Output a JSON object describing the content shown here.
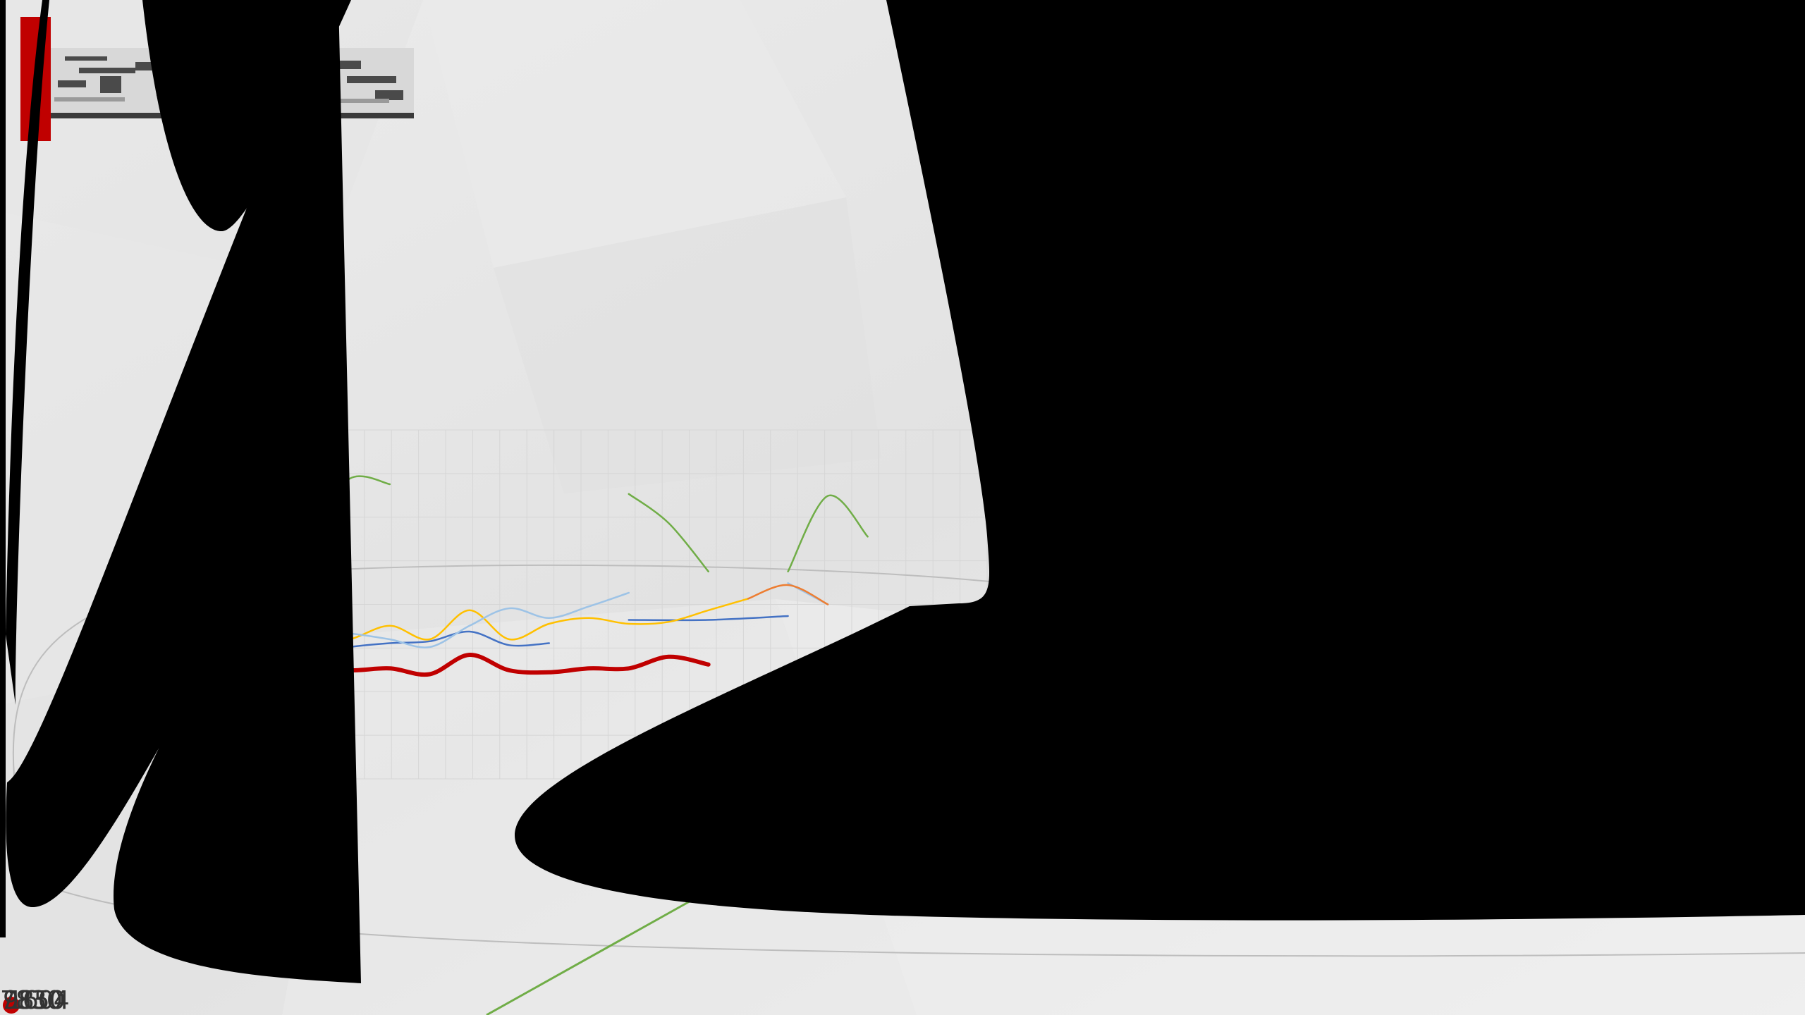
{
  "counter": {
    "values": [
      "7830",
      "9850",
      "1604"
    ]
  },
  "chart_data": {
    "type": "line",
    "title": "",
    "xlabel": "",
    "ylabel": "",
    "grid": true,
    "legend": "none",
    "series": [
      {
        "color": "#c00000",
        "emphasis": true,
        "values": [
          [
            0,
            58
          ],
          [
            0.5,
            56
          ],
          [
            1,
            57
          ],
          [
            1.5,
            54
          ],
          [
            2,
            64
          ],
          [
            2.5,
            56
          ],
          [
            3,
            55
          ],
          [
            3.5,
            57
          ],
          [
            4,
            57
          ],
          [
            4.5,
            63
          ],
          [
            5,
            59
          ]
        ]
      },
      {
        "color": "#4472c4",
        "values": [
          [
            0,
            64
          ],
          [
            0.5,
            68
          ],
          [
            1,
            70
          ],
          [
            1.5,
            71
          ],
          [
            2,
            76
          ],
          [
            2.5,
            69
          ],
          [
            3,
            70
          ]
        ]
      },
      {
        "color": "#4472c4",
        "values": [
          [
            4,
            82
          ],
          [
            5,
            82
          ],
          [
            6,
            84
          ]
        ]
      },
      {
        "color": "#ffc000",
        "values": [
          [
            0,
            69
          ],
          [
            0.5,
            72
          ],
          [
            1,
            79
          ],
          [
            1.5,
            72
          ],
          [
            2,
            87
          ],
          [
            2.5,
            72
          ],
          [
            3,
            80
          ],
          [
            3.5,
            83
          ],
          [
            4,
            80
          ],
          [
            4.5,
            81
          ],
          [
            5,
            87
          ],
          [
            5.5,
            93
          ]
        ]
      },
      {
        "color": "#9dc3e6",
        "values": [
          [
            0,
            76
          ],
          [
            0.5,
            75
          ],
          [
            1,
            72
          ],
          [
            1.5,
            68
          ],
          [
            2,
            79
          ],
          [
            2.5,
            88
          ],
          [
            3,
            83
          ],
          [
            3.5,
            89
          ],
          [
            4,
            96
          ]
        ]
      },
      {
        "color": "#9dc3e6",
        "values": [
          [
            6,
            101
          ],
          [
            6.5,
            90
          ]
        ]
      },
      {
        "color": "#ed7d31",
        "values": [
          [
            5.5,
            93
          ],
          [
            6,
            100
          ],
          [
            6.5,
            90
          ]
        ]
      },
      {
        "color": "#70ad47",
        "values": [
          [
            0,
            130
          ],
          [
            0.5,
            155
          ],
          [
            1,
            152
          ]
        ]
      },
      {
        "color": "#70ad47",
        "values": [
          [
            4,
            147
          ],
          [
            4.5,
            132
          ],
          [
            5,
            107
          ]
        ]
      },
      {
        "color": "#70ad47",
        "values": [
          [
            6,
            107
          ],
          [
            6.5,
            146
          ],
          [
            7,
            125
          ]
        ]
      }
    ]
  }
}
